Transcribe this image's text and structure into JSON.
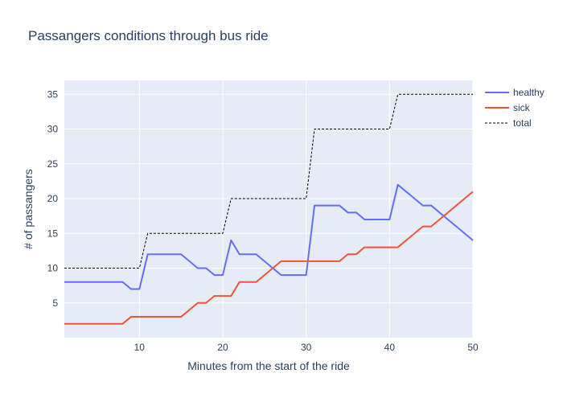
{
  "chart_data": {
    "type": "line",
    "title": "Passangers conditions through bus ride",
    "xlabel": "Minutes from the start of the ride",
    "ylabel": "# of passangers",
    "xlim": [
      1,
      50
    ],
    "ylim": [
      0,
      37
    ],
    "x_ticks": [
      10,
      20,
      30,
      40,
      50
    ],
    "y_ticks": [
      5,
      10,
      15,
      20,
      25,
      30,
      35
    ],
    "grid": true,
    "legend_position": "top-right",
    "series": [
      {
        "name": "healthy",
        "color": "#636efa",
        "dash": "solid",
        "x": [
          1,
          2,
          3,
          4,
          5,
          6,
          7,
          8,
          9,
          10,
          11,
          12,
          13,
          14,
          15,
          16,
          17,
          18,
          19,
          20,
          21,
          22,
          23,
          24,
          25,
          26,
          27,
          28,
          29,
          30,
          31,
          32,
          33,
          34,
          35,
          36,
          37,
          38,
          39,
          40,
          41,
          42,
          43,
          44,
          45,
          46,
          47,
          48,
          49,
          50
        ],
        "y": [
          8,
          8,
          8,
          8,
          8,
          8,
          8,
          8,
          7,
          7,
          12,
          12,
          12,
          12,
          12,
          11,
          10,
          10,
          9,
          9,
          14,
          12,
          12,
          12,
          11,
          10,
          9,
          9,
          9,
          9,
          19,
          19,
          19,
          19,
          18,
          18,
          17,
          17,
          17,
          17,
          22,
          21,
          20,
          19,
          19,
          18,
          17,
          16,
          15,
          14
        ]
      },
      {
        "name": "sick",
        "color": "#ef553b",
        "dash": "solid",
        "x": [
          1,
          2,
          3,
          4,
          5,
          6,
          7,
          8,
          9,
          10,
          11,
          12,
          13,
          14,
          15,
          16,
          17,
          18,
          19,
          20,
          21,
          22,
          23,
          24,
          25,
          26,
          27,
          28,
          29,
          30,
          31,
          32,
          33,
          34,
          35,
          36,
          37,
          38,
          39,
          40,
          41,
          42,
          43,
          44,
          45,
          46,
          47,
          48,
          49,
          50
        ],
        "y": [
          2,
          2,
          2,
          2,
          2,
          2,
          2,
          2,
          3,
          3,
          3,
          3,
          3,
          3,
          3,
          4,
          5,
          5,
          6,
          6,
          6,
          8,
          8,
          8,
          9,
          10,
          11,
          11,
          11,
          11,
          11,
          11,
          11,
          11,
          12,
          12,
          13,
          13,
          13,
          13,
          13,
          14,
          15,
          16,
          16,
          17,
          18,
          19,
          20,
          21
        ]
      },
      {
        "name": "total",
        "color": "#000000",
        "dash": "dotted",
        "x": [
          1,
          2,
          3,
          4,
          5,
          6,
          7,
          8,
          9,
          10,
          11,
          12,
          13,
          14,
          15,
          16,
          17,
          18,
          19,
          20,
          21,
          22,
          23,
          24,
          25,
          26,
          27,
          28,
          29,
          30,
          31,
          32,
          33,
          34,
          35,
          36,
          37,
          38,
          39,
          40,
          41,
          42,
          43,
          44,
          45,
          46,
          47,
          48,
          49,
          50
        ],
        "y": [
          10,
          10,
          10,
          10,
          10,
          10,
          10,
          10,
          10,
          10,
          15,
          15,
          15,
          15,
          15,
          15,
          15,
          15,
          15,
          15,
          20,
          20,
          20,
          20,
          20,
          20,
          20,
          20,
          20,
          20,
          30,
          30,
          30,
          30,
          30,
          30,
          30,
          30,
          30,
          30,
          35,
          35,
          35,
          35,
          35,
          35,
          35,
          35,
          35,
          35
        ]
      }
    ]
  }
}
